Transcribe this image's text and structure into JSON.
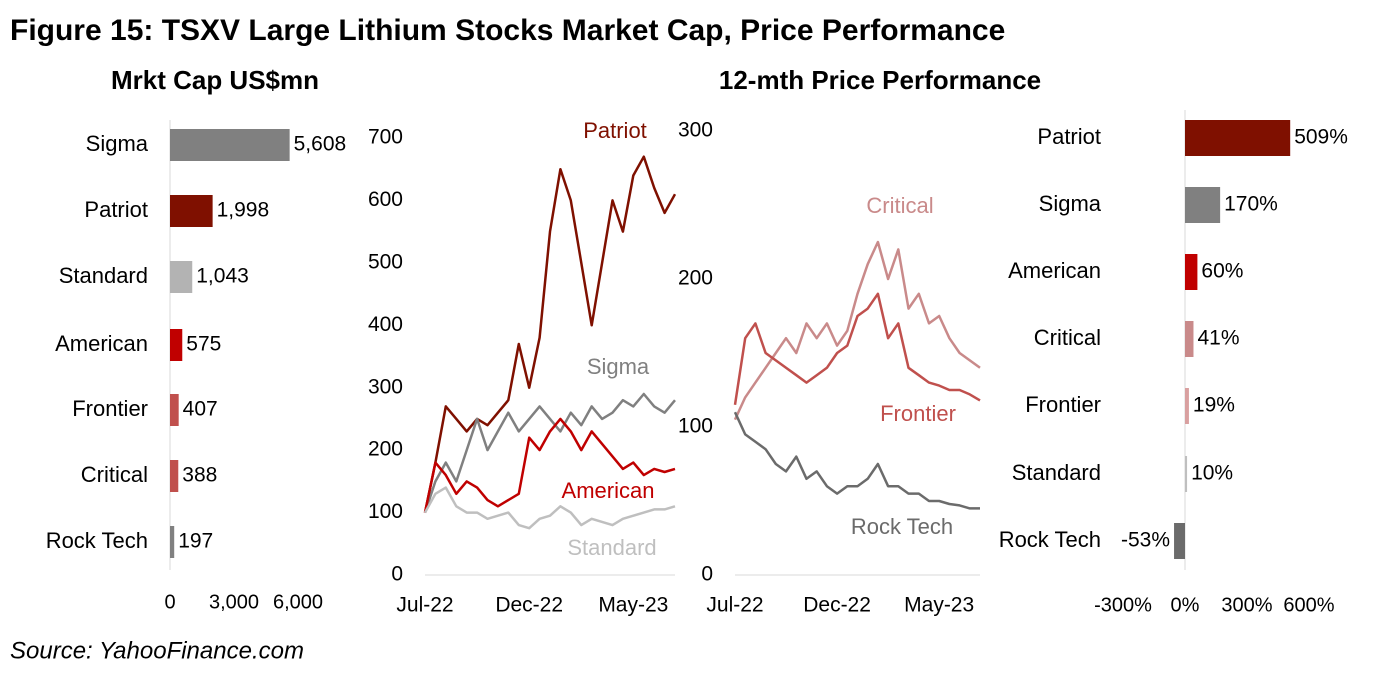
{
  "title": "Figure 15: TSXV Large Lithium Stocks Market Cap, Price Performance",
  "source": "Source: YahooFinance.com",
  "chart_data": [
    {
      "type": "hbar",
      "title": "Mrkt Cap US$mn",
      "categories": [
        "Sigma",
        "Patriot",
        "Standard",
        "American",
        "Frontier",
        "Critical",
        "Rock Tech"
      ],
      "values": [
        5608,
        1998,
        1043,
        575,
        407,
        388,
        197
      ],
      "value_labels": [
        "5,608",
        "1,998",
        "1,043",
        "575",
        "407",
        "388",
        "197"
      ],
      "colors": [
        "#808080",
        "#7f1000",
        "#b3b3b3",
        "#c00000",
        "#c0504d",
        "#c0504d",
        "#808080"
      ],
      "xlim": [
        0,
        6000
      ],
      "xticks": [
        0,
        {
          "value": 3000,
          "label": "3,000"
        },
        {
          "value": 6000,
          "label": "6,000"
        }
      ]
    },
    {
      "type": "line",
      "categories": [
        "Jul-22",
        null,
        null,
        null,
        null,
        null,
        null,
        null,
        null,
        null,
        "Dec-22",
        null,
        null,
        null,
        null,
        null,
        null,
        null,
        null,
        null,
        "May-23",
        null,
        null,
        null,
        null
      ],
      "ylim": [
        0,
        700
      ],
      "yticks": [
        0,
        100,
        200,
        300,
        400,
        500,
        600,
        700
      ],
      "series": [
        {
          "name": "Patriot",
          "color": "#7f1000",
          "values": [
            100,
            180,
            270,
            250,
            230,
            250,
            240,
            260,
            280,
            370,
            300,
            380,
            550,
            650,
            600,
            500,
            400,
            500,
            600,
            550,
            640,
            670,
            620,
            580,
            610
          ]
        },
        {
          "name": "Sigma",
          "color": "#808080",
          "values": [
            100,
            150,
            180,
            150,
            200,
            250,
            200,
            230,
            260,
            230,
            250,
            270,
            250,
            230,
            260,
            240,
            270,
            250,
            260,
            280,
            270,
            290,
            270,
            260,
            280
          ]
        },
        {
          "name": "American",
          "color": "#c00000",
          "values": [
            100,
            180,
            160,
            130,
            150,
            140,
            120,
            110,
            120,
            130,
            220,
            200,
            230,
            250,
            230,
            200,
            230,
            210,
            190,
            170,
            180,
            160,
            170,
            165,
            170
          ]
        },
        {
          "name": "Standard",
          "color": "#bfbfbf",
          "values": [
            100,
            130,
            140,
            110,
            100,
            100,
            90,
            95,
            100,
            80,
            75,
            90,
            95,
            110,
            100,
            80,
            90,
            85,
            80,
            90,
            95,
            100,
            105,
            105,
            110
          ]
        }
      ]
    },
    {
      "type": "line",
      "categories": [
        "Jul-22",
        null,
        null,
        null,
        null,
        null,
        null,
        null,
        null,
        null,
        "Dec-22",
        null,
        null,
        null,
        null,
        null,
        null,
        null,
        null,
        null,
        "May-23",
        null,
        null,
        null,
        null
      ],
      "ylim": [
        0,
        300
      ],
      "yticks": [
        0,
        100,
        200,
        300
      ],
      "series": [
        {
          "name": "Critical",
          "color": "#c98a8a",
          "values": [
            105,
            120,
            130,
            140,
            150,
            160,
            150,
            170,
            160,
            170,
            155,
            165,
            190,
            210,
            225,
            200,
            220,
            180,
            190,
            170,
            175,
            160,
            150,
            145,
            140
          ]
        },
        {
          "name": "Frontier",
          "color": "#c0504d",
          "values": [
            115,
            160,
            170,
            150,
            145,
            140,
            135,
            130,
            135,
            140,
            150,
            155,
            175,
            180,
            190,
            160,
            170,
            140,
            135,
            130,
            128,
            125,
            125,
            122,
            118
          ]
        },
        {
          "name": "Rock Tech",
          "color": "#6b6b6b",
          "values": [
            110,
            95,
            90,
            85,
            75,
            70,
            80,
            65,
            70,
            60,
            55,
            60,
            60,
            65,
            75,
            60,
            60,
            55,
            55,
            50,
            50,
            48,
            47,
            45,
            45
          ]
        }
      ]
    },
    {
      "type": "hbar",
      "title": "12-mth Price Performance",
      "categories": [
        "Patriot",
        "Sigma",
        "American",
        "Critical",
        "Frontier",
        "Standard",
        "Rock Tech"
      ],
      "values": [
        509,
        170,
        60,
        41,
        19,
        10,
        -53
      ],
      "value_labels": [
        "509%",
        "170%",
        "60%",
        "41%",
        "19%",
        "10%",
        "-53%"
      ],
      "colors": [
        "#7f1000",
        "#808080",
        "#c00000",
        "#c98a8a",
        "#d9a0a0",
        "#bfbfbf",
        "#6b6b6b"
      ],
      "xlim": [
        -300,
        600
      ],
      "xticks": [
        {
          "value": -300,
          "label": "-300%"
        },
        {
          "value": 0,
          "label": "0%"
        },
        {
          "value": 300,
          "label": "300%"
        },
        {
          "value": 600,
          "label": "600%"
        }
      ]
    }
  ]
}
